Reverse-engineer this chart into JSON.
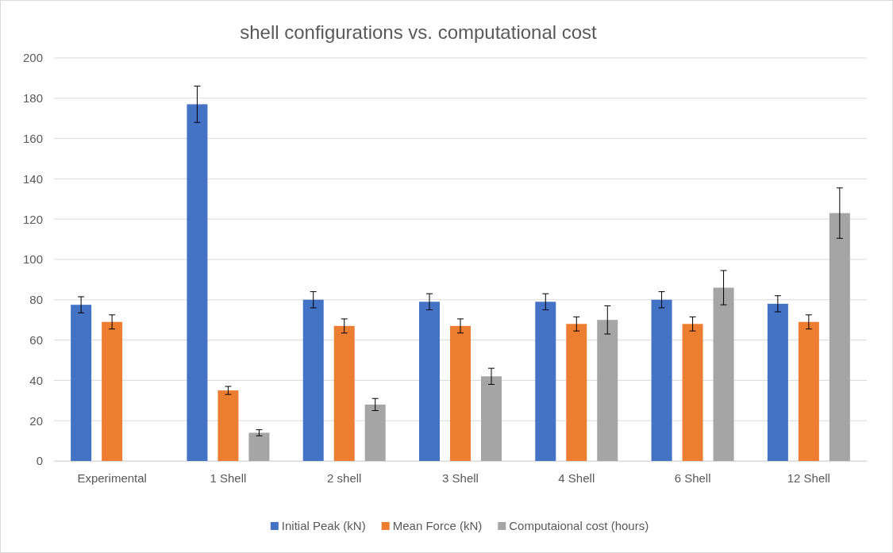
{
  "chart_data": {
    "type": "bar",
    "title": "shell configurations vs. computational cost",
    "categories": [
      "Experimental",
      "1 Shell",
      "2 shell",
      "3 Shell",
      "4 Shell",
      "6 Shell",
      "12 Shell"
    ],
    "series": [
      {
        "name": "Initial Peak (kN)",
        "color": "#4472c4",
        "values": [
          77.5,
          177,
          80,
          79,
          79,
          80,
          78
        ],
        "errors": [
          4,
          9,
          4,
          4,
          4,
          4,
          4
        ]
      },
      {
        "name": "Mean Force (kN)",
        "color": "#ed7d31",
        "values": [
          69,
          35,
          67,
          67,
          68,
          68,
          69
        ],
        "errors": [
          3.5,
          2,
          3.5,
          3.5,
          3.5,
          3.5,
          3.5
        ]
      },
      {
        "name": "Computaional cost (hours)",
        "color": "#a5a5a5",
        "values": [
          null,
          14,
          28,
          42,
          70,
          86,
          123
        ],
        "errors": [
          null,
          1.5,
          3,
          4,
          7,
          8.5,
          12.5
        ]
      }
    ],
    "ylim": [
      0,
      200
    ],
    "yticks": [
      0,
      20,
      40,
      60,
      80,
      100,
      120,
      140,
      160,
      180,
      200
    ],
    "grid": "y",
    "legend": "bottom"
  }
}
